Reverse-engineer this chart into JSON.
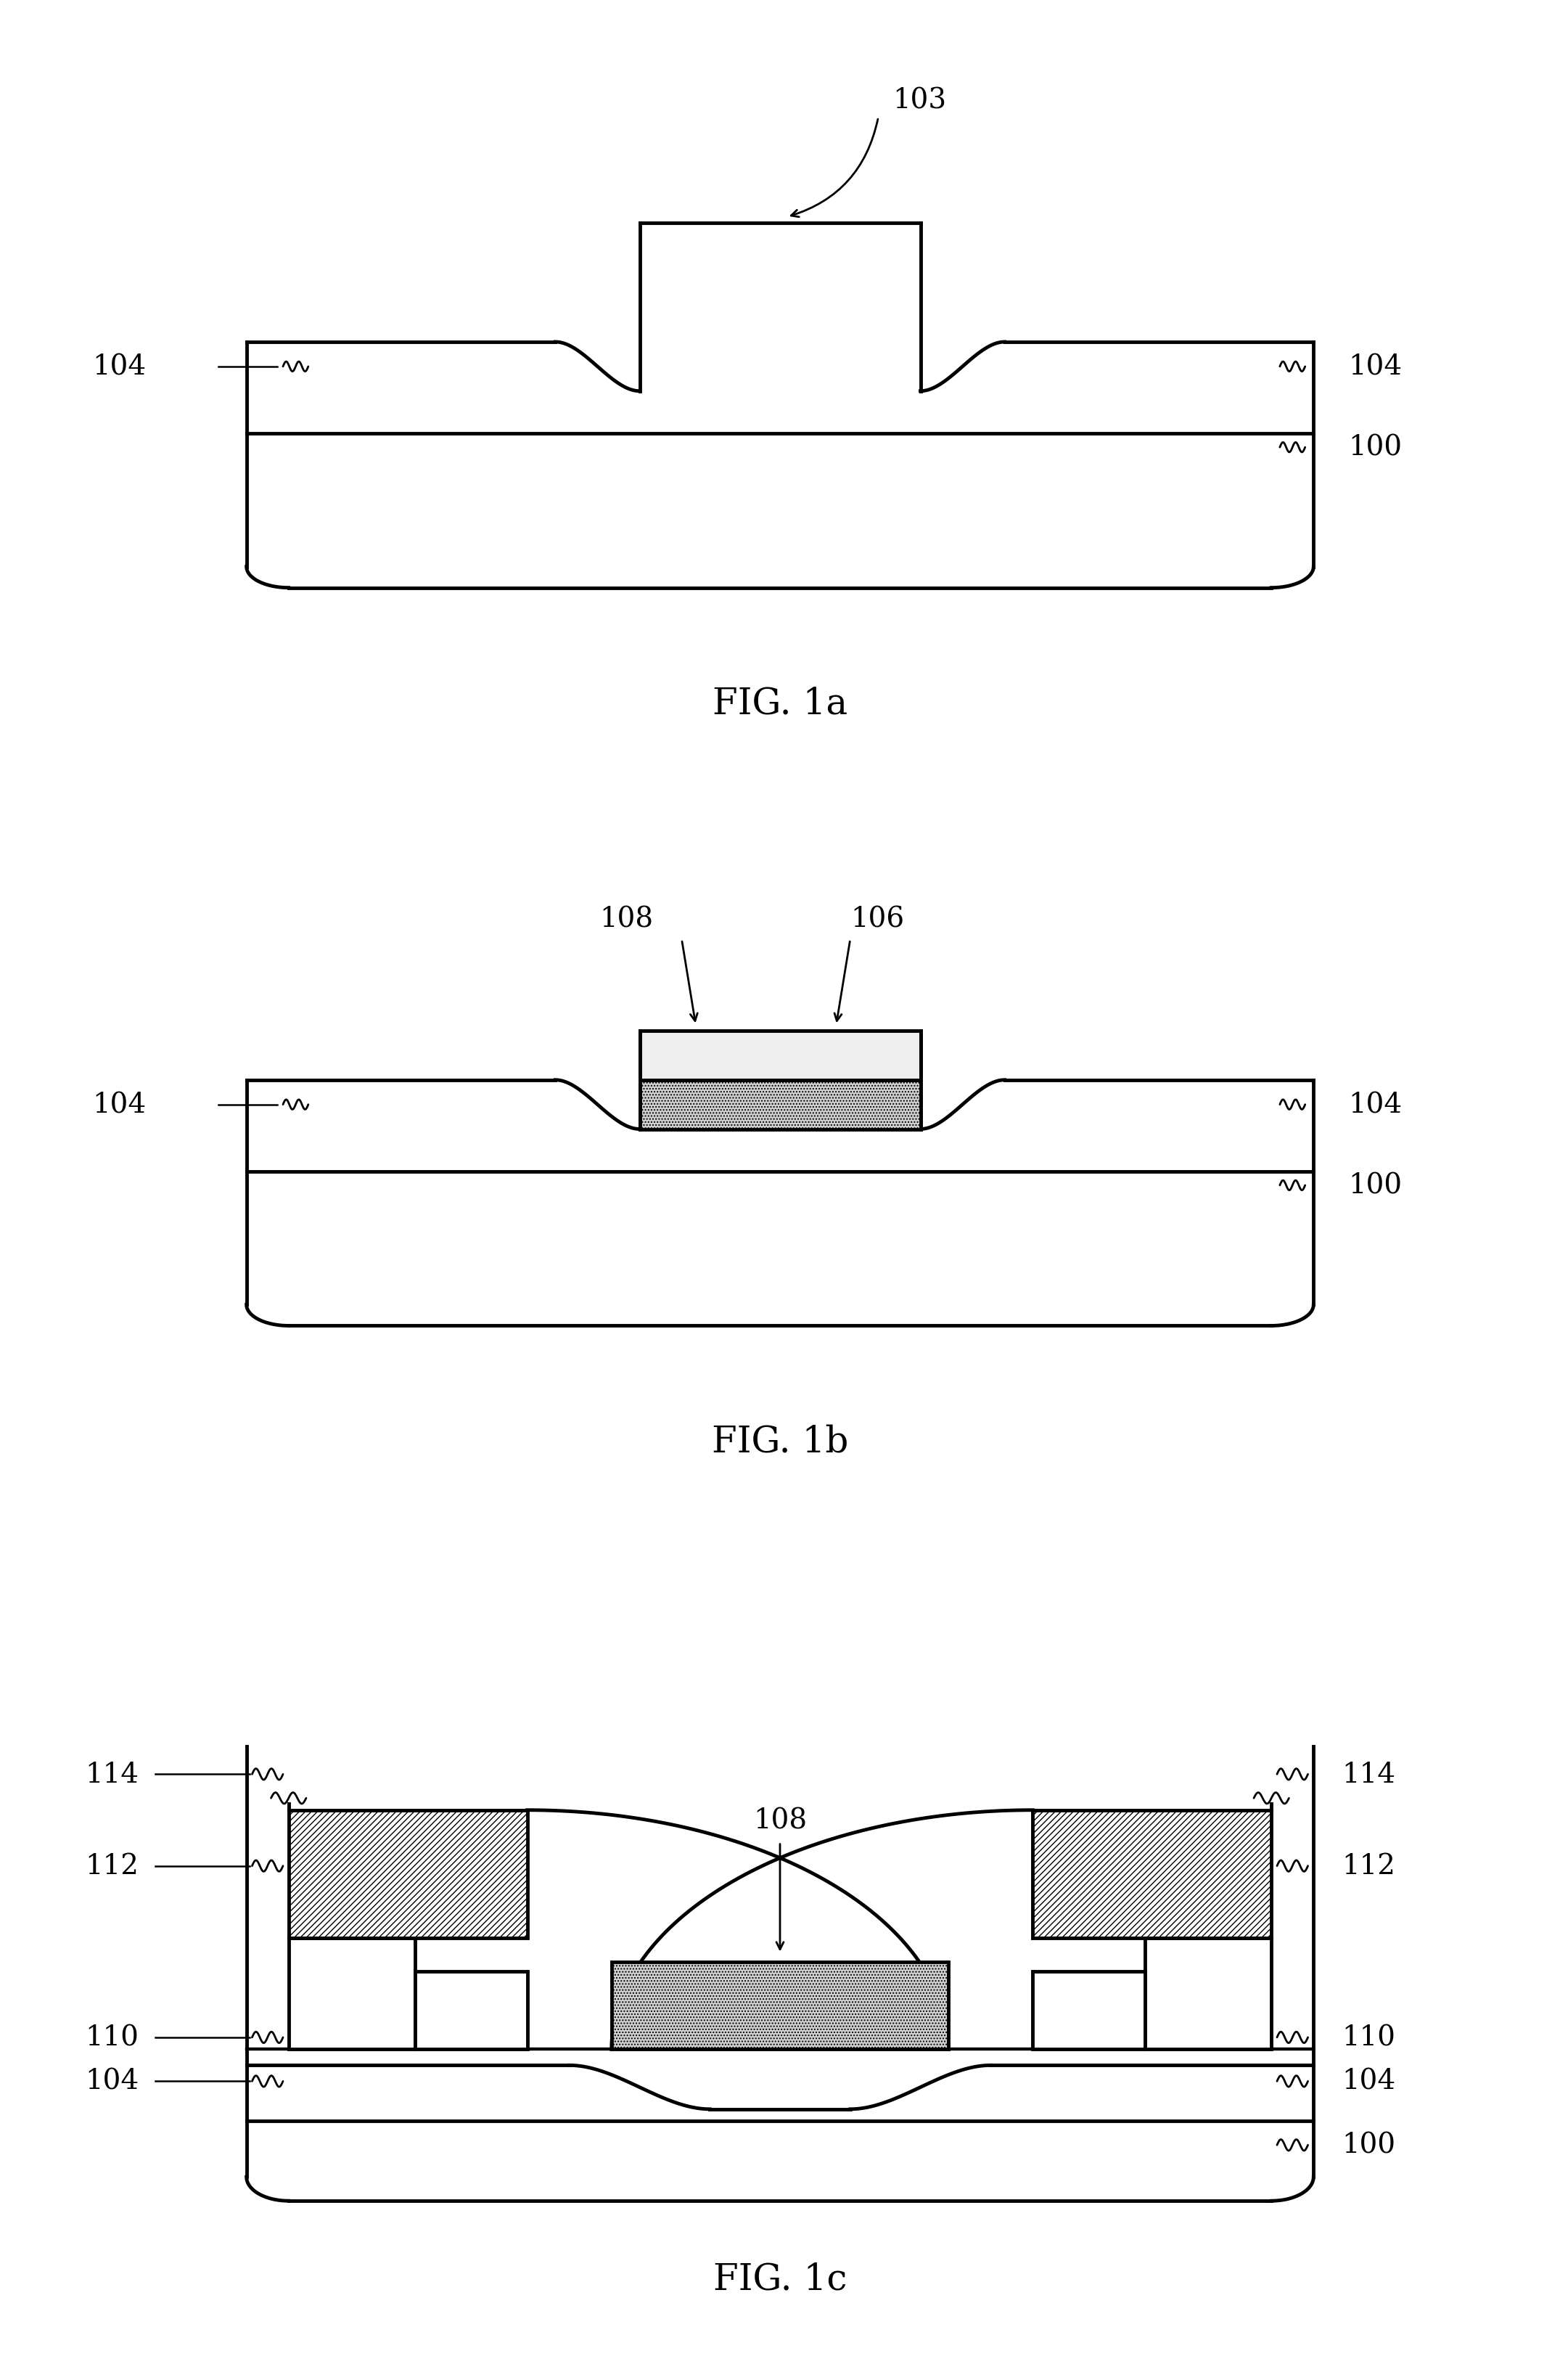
{
  "bg": "#ffffff",
  "lc": "#000000",
  "lw": 3.5,
  "gray_stipple": "#d0d0d0",
  "white_fill": "#ffffff",
  "fig_width": 21.5,
  "fig_height": 32.8,
  "fs_label": 28,
  "fs_fig": 36,
  "hatch_diag": "////",
  "hatch_dot": "....",
  "fig1a": "FIG. 1a",
  "fig1b": "FIG. 1b",
  "fig1c": "FIG. 1c"
}
